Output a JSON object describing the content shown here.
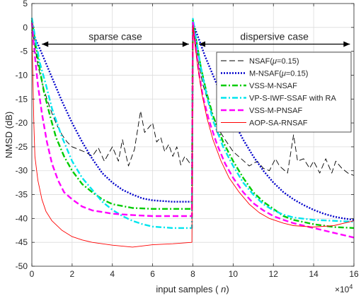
{
  "chart_data": {
    "type": "line",
    "title": "",
    "xlabel": "input samples ( n)",
    "xlabel_parts": {
      "prefix": "input samples ( ",
      "variable": "n",
      "suffix": ")"
    },
    "ylabel": "NMSD (dB)",
    "x_exponent": "×10",
    "x_exponent_power": "4",
    "xlim": [
      0,
      16
    ],
    "ylim": [
      -50,
      5
    ],
    "x_ticks": [
      0,
      2,
      4,
      6,
      8,
      10,
      12,
      14,
      16
    ],
    "y_ticks": [
      5,
      0,
      -5,
      -10,
      -15,
      -20,
      -25,
      -30,
      -35,
      -40,
      -45,
      -50
    ],
    "grid": true,
    "legend_position": "upper-right",
    "annotations": [
      {
        "text": "sparse case",
        "x_range": [
          0.5,
          7.8
        ],
        "y": -3.5
      },
      {
        "text": "dispersive case",
        "x_range": [
          8.3,
          15.8
        ],
        "y": -3.5
      }
    ],
    "series": [
      {
        "name": "NSAF(μ=0.15)",
        "name_parts": [
          "NSAF(",
          "μ",
          "=0.15)"
        ],
        "color": "#000000",
        "style": "dashed",
        "points": [
          [
            0,
            0
          ],
          [
            0.15,
            -4
          ],
          [
            0.3,
            -8
          ],
          [
            0.5,
            -11.5
          ],
          [
            0.75,
            -15
          ],
          [
            1,
            -18
          ],
          [
            1.25,
            -20.5
          ],
          [
            1.5,
            -22.5
          ],
          [
            1.75,
            -24
          ],
          [
            2,
            -25
          ],
          [
            2.3,
            -25.5
          ],
          [
            2.7,
            -26.2
          ],
          [
            3,
            -27
          ],
          [
            3.3,
            -25.2
          ],
          [
            3.6,
            -28
          ],
          [
            4,
            -25
          ],
          [
            4.3,
            -28
          ],
          [
            4.5,
            -23.5
          ],
          [
            4.8,
            -29
          ],
          [
            5.1,
            -25.5
          ],
          [
            5.4,
            -17.5
          ],
          [
            5.6,
            -22
          ],
          [
            5.8,
            -21
          ],
          [
            6,
            -20
          ],
          [
            6.2,
            -24
          ],
          [
            6.4,
            -23
          ],
          [
            6.6,
            -26
          ],
          [
            6.8,
            -24.5
          ],
          [
            7,
            -27
          ],
          [
            7.2,
            -25
          ],
          [
            7.4,
            -28.8
          ],
          [
            7.6,
            -27
          ],
          [
            7.95,
            -29
          ],
          [
            8,
            1.5
          ],
          [
            8.15,
            -4
          ],
          [
            8.3,
            -8
          ],
          [
            8.5,
            -12
          ],
          [
            8.75,
            -15.5
          ],
          [
            9,
            -18.5
          ],
          [
            9.3,
            -21.5
          ],
          [
            9.6,
            -23.5
          ],
          [
            10,
            -26
          ],
          [
            10.4,
            -27.5
          ],
          [
            10.8,
            -29
          ],
          [
            11.2,
            -28
          ],
          [
            11.5,
            -29.5
          ],
          [
            11.8,
            -30
          ],
          [
            12.1,
            -27.5
          ],
          [
            12.3,
            -29
          ],
          [
            12.7,
            -30.5
          ],
          [
            13,
            -22.5
          ],
          [
            13.2,
            -28
          ],
          [
            13.5,
            -27.5
          ],
          [
            13.8,
            -29.5
          ],
          [
            14,
            -28
          ],
          [
            14.3,
            -30.5
          ],
          [
            14.6,
            -27.5
          ],
          [
            14.9,
            -30.5
          ],
          [
            15.1,
            -28
          ],
          [
            15.4,
            -29.5
          ],
          [
            15.7,
            -30.5
          ],
          [
            16,
            -31
          ]
        ]
      },
      {
        "name": "M-NSAF(μ=0.15)",
        "name_parts": [
          "M-NSAF(",
          "μ",
          "=0.15)"
        ],
        "color": "#0000cc",
        "style": "dotted",
        "points": [
          [
            0,
            -1
          ],
          [
            0.3,
            -3.5
          ],
          [
            0.6,
            -6.5
          ],
          [
            1,
            -10.5
          ],
          [
            1.5,
            -15.5
          ],
          [
            2,
            -20
          ],
          [
            2.5,
            -24
          ],
          [
            3,
            -27.5
          ],
          [
            3.5,
            -30.5
          ],
          [
            4,
            -32.5
          ],
          [
            4.5,
            -34
          ],
          [
            5,
            -35
          ],
          [
            5.5,
            -35.8
          ],
          [
            6,
            -36.2
          ],
          [
            7,
            -36.5
          ],
          [
            7.95,
            -36.5
          ],
          [
            8,
            1
          ],
          [
            8.3,
            -2.5
          ],
          [
            8.6,
            -6
          ],
          [
            9,
            -10
          ],
          [
            9.5,
            -15
          ],
          [
            10,
            -19.5
          ],
          [
            10.5,
            -23.5
          ],
          [
            11,
            -27
          ],
          [
            11.5,
            -30
          ],
          [
            12,
            -32.5
          ],
          [
            12.5,
            -34.5
          ],
          [
            13,
            -36
          ],
          [
            13.5,
            -37.2
          ],
          [
            14,
            -38.2
          ],
          [
            14.5,
            -39
          ],
          [
            15,
            -39.6
          ],
          [
            15.5,
            -40
          ],
          [
            16,
            -40.3
          ]
        ]
      },
      {
        "name": "VSS-M-NSAF",
        "color": "#00cc00",
        "style": "dashdot",
        "points": [
          [
            0,
            1.5
          ],
          [
            0.2,
            -4
          ],
          [
            0.4,
            -9
          ],
          [
            0.6,
            -13.5
          ],
          [
            0.9,
            -18.5
          ],
          [
            1.2,
            -23
          ],
          [
            1.6,
            -27
          ],
          [
            2,
            -30
          ],
          [
            2.5,
            -32.8
          ],
          [
            3,
            -34.5
          ],
          [
            3.5,
            -36
          ],
          [
            4,
            -37
          ],
          [
            5,
            -37.8
          ],
          [
            6,
            -38
          ],
          [
            7,
            -38
          ],
          [
            7.95,
            -38
          ],
          [
            8,
            1.5
          ],
          [
            8.2,
            -3.5
          ],
          [
            8.4,
            -8.5
          ],
          [
            8.7,
            -14
          ],
          [
            9,
            -18.5
          ],
          [
            9.5,
            -24
          ],
          [
            10,
            -28
          ],
          [
            10.5,
            -31.5
          ],
          [
            11,
            -34.5
          ],
          [
            11.5,
            -36.5
          ],
          [
            12,
            -38
          ],
          [
            12.5,
            -39.5
          ],
          [
            13,
            -40.3
          ],
          [
            14,
            -41.2
          ],
          [
            15,
            -41.8
          ],
          [
            16,
            -42
          ]
        ]
      },
      {
        "name": "VP-S-IWF-SSAF with RA",
        "color": "#00e5ee",
        "style": "dashdot",
        "points": [
          [
            0,
            2
          ],
          [
            0.2,
            -3
          ],
          [
            0.4,
            -7.5
          ],
          [
            0.7,
            -12
          ],
          [
            1,
            -17
          ],
          [
            1.5,
            -23
          ],
          [
            2,
            -28
          ],
          [
            2.5,
            -31.5
          ],
          [
            3,
            -34
          ],
          [
            3.5,
            -36.5
          ],
          [
            4,
            -38.2
          ],
          [
            4.5,
            -39.5
          ],
          [
            5,
            -40.5
          ],
          [
            5.5,
            -41.2
          ],
          [
            6,
            -41.7
          ],
          [
            7,
            -42
          ],
          [
            7.95,
            -42
          ],
          [
            8,
            1.8
          ],
          [
            8.2,
            -3.5
          ],
          [
            8.4,
            -8.5
          ],
          [
            8.7,
            -14.5
          ],
          [
            9,
            -19.5
          ],
          [
            9.5,
            -25
          ],
          [
            10,
            -29
          ],
          [
            10.5,
            -32.5
          ],
          [
            11,
            -35
          ],
          [
            11.5,
            -37
          ],
          [
            12,
            -38.3
          ],
          [
            12.5,
            -39.2
          ],
          [
            13,
            -39.8
          ],
          [
            14,
            -40.3
          ],
          [
            15,
            -40.5
          ],
          [
            16,
            -40.7
          ]
        ]
      },
      {
        "name": "VSS-M-PNSAF",
        "color": "#ff00ff",
        "style": "dashed",
        "points": [
          [
            0,
            1
          ],
          [
            0.15,
            -6
          ],
          [
            0.3,
            -12
          ],
          [
            0.5,
            -18
          ],
          [
            0.75,
            -24
          ],
          [
            1,
            -28.5
          ],
          [
            1.3,
            -32
          ],
          [
            1.6,
            -34.5
          ],
          [
            2,
            -36
          ],
          [
            2.5,
            -37.5
          ],
          [
            3,
            -38.3
          ],
          [
            4,
            -39
          ],
          [
            5,
            -39.3
          ],
          [
            6,
            -39.5
          ],
          [
            7,
            -39.5
          ],
          [
            7.95,
            -39.5
          ],
          [
            8,
            1
          ],
          [
            8.15,
            -4.5
          ],
          [
            8.3,
            -9.5
          ],
          [
            8.5,
            -14.5
          ],
          [
            8.8,
            -19.5
          ],
          [
            9.2,
            -24.5
          ],
          [
            9.6,
            -28.5
          ],
          [
            10,
            -31.5
          ],
          [
            10.5,
            -34.5
          ],
          [
            11,
            -36.8
          ],
          [
            11.5,
            -38.3
          ],
          [
            12,
            -39.5
          ],
          [
            12.5,
            -40.3
          ],
          [
            13,
            -41
          ],
          [
            14,
            -42
          ],
          [
            15,
            -43
          ],
          [
            16,
            -44
          ]
        ]
      },
      {
        "name": "AOP-SA-RNSAF",
        "color": "#ff0000",
        "style": "solid",
        "points": [
          [
            0,
            0
          ],
          [
            0.05,
            -10
          ],
          [
            0.1,
            -20
          ],
          [
            0.15,
            -27
          ],
          [
            0.3,
            -32
          ],
          [
            0.5,
            -36
          ],
          [
            0.7,
            -38.5
          ],
          [
            1,
            -40.5
          ],
          [
            1.5,
            -42.5
          ],
          [
            2,
            -43.8
          ],
          [
            2.5,
            -44.5
          ],
          [
            3,
            -45
          ],
          [
            3.5,
            -45.3
          ],
          [
            4,
            -45.6
          ],
          [
            5,
            -46
          ],
          [
            6,
            -45.5
          ],
          [
            7,
            -45.3
          ],
          [
            7.95,
            -45
          ],
          [
            8,
            0.5
          ],
          [
            8.1,
            -3.5
          ],
          [
            8.25,
            -8.5
          ],
          [
            8.45,
            -14
          ],
          [
            8.7,
            -19
          ],
          [
            9,
            -23.5
          ],
          [
            9.4,
            -28
          ],
          [
            9.8,
            -31.5
          ],
          [
            10.3,
            -34.5
          ],
          [
            10.8,
            -37
          ],
          [
            11.3,
            -38.8
          ],
          [
            11.8,
            -40
          ],
          [
            12.5,
            -41
          ],
          [
            13,
            -41.5
          ],
          [
            14,
            -41.8
          ],
          [
            15,
            -41.5
          ],
          [
            16,
            -40.5
          ]
        ]
      }
    ]
  }
}
